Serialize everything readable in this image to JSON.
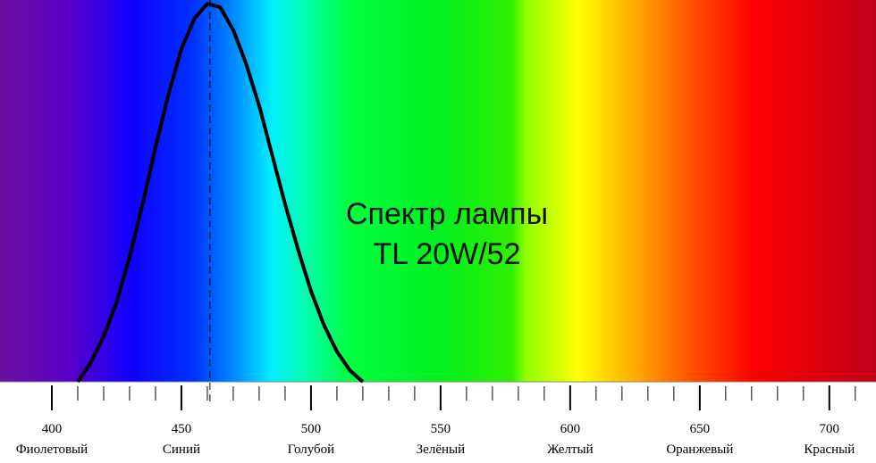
{
  "chart_data": {
    "type": "line",
    "title_lines": [
      "Спектр лампы",
      "TL 20W/52"
    ],
    "x": [
      410,
      415,
      420,
      425,
      430,
      435,
      440,
      445,
      450,
      455,
      460,
      465,
      470,
      475,
      480,
      485,
      490,
      495,
      500,
      505,
      510,
      515,
      520
    ],
    "values": [
      0,
      5,
      12,
      21,
      33,
      47,
      62,
      76,
      88,
      96,
      100,
      99,
      93,
      84,
      73,
      60,
      47,
      35,
      24,
      15,
      8,
      3,
      0
    ],
    "color": "#000000",
    "peak_line": 461,
    "xlim": [
      380,
      718
    ],
    "ylim": [
      0,
      100
    ],
    "xticks": [
      400,
      450,
      500,
      550,
      600,
      650,
      700
    ],
    "xtick_names": [
      "Фиолетовый",
      "Синий",
      "Голубой",
      "Зелёный",
      "Желтый",
      "Оранжевый",
      "Красный"
    ],
    "xminor_ticks": [
      410,
      420,
      430,
      440,
      460,
      470,
      480,
      490,
      510,
      520,
      530,
      540,
      560,
      570,
      580,
      590,
      610,
      620,
      630,
      640,
      660,
      670,
      680,
      690,
      710
    ]
  }
}
